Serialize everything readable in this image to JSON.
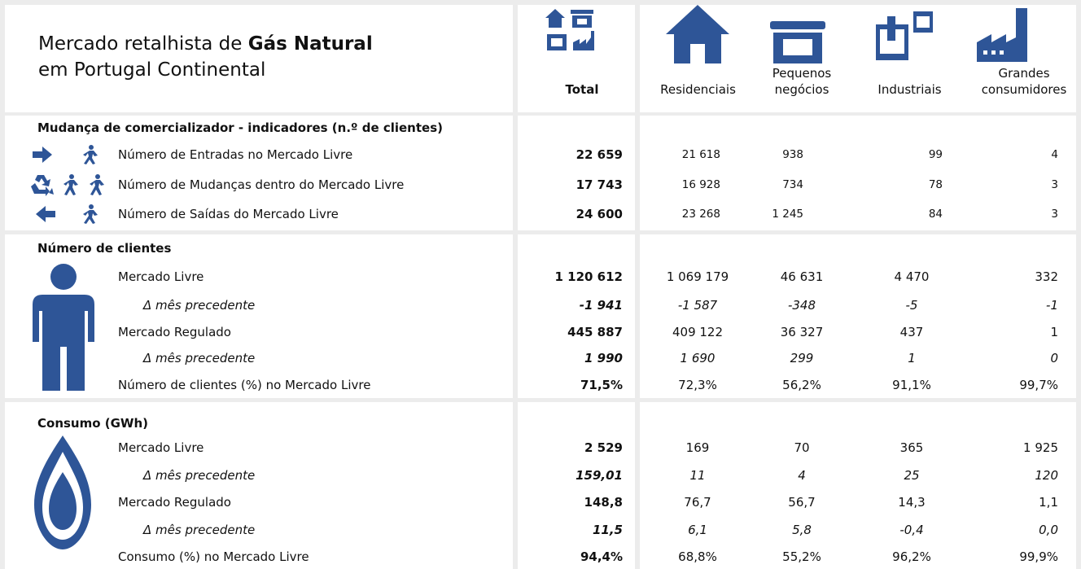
{
  "header": {
    "title_prefix": "Mercado retalhista de ",
    "title_bold": "Gás Natural",
    "title_line2": "em Portugal Continental",
    "columns": [
      "Total",
      "Residenciais",
      "Pequenos negócios",
      "Industriais",
      "Grandes consumidores"
    ]
  },
  "sections": [
    {
      "title": "Mudança de comercializador - indicadores (n.º de clientes)",
      "rows": [
        {
          "label": "Número de Entradas no Mercado Livre",
          "values": [
            "22 659",
            "21 618",
            "938",
            "99",
            "4"
          ]
        },
        {
          "label": "Número de Mudanças dentro do Mercado Livre",
          "values": [
            "17 743",
            "16 928",
            "734",
            "78",
            "3"
          ]
        },
        {
          "label": "Número de Saídas do Mercado Livre",
          "values": [
            "24 600",
            "23 268",
            "1 245",
            "84",
            "3"
          ]
        }
      ]
    },
    {
      "title": "Número de clientes",
      "rows": [
        {
          "label": "Mercado Livre",
          "values": [
            "1 120 612",
            "1 069 179",
            "46 631",
            "4 470",
            "332"
          ]
        },
        {
          "label": "Δ mês precedente",
          "values": [
            "-1 941",
            "-1 587",
            "-348",
            "-5",
            "-1"
          ]
        },
        {
          "label": "Mercado Regulado",
          "values": [
            "445 887",
            "409 122",
            "36 327",
            "437",
            "1"
          ]
        },
        {
          "label": "Δ mês precedente",
          "values": [
            "1 990",
            "1 690",
            "299",
            "1",
            "0"
          ]
        },
        {
          "label": "Número de clientes (%) no Mercado Livre",
          "values": [
            "71,5%",
            "72,3%",
            "56,2%",
            "91,1%",
            "99,7%"
          ]
        }
      ]
    },
    {
      "title": "Consumo (GWh)",
      "rows": [
        {
          "label": "Mercado Livre",
          "values": [
            "2 529",
            "169",
            "70",
            "365",
            "1 925"
          ]
        },
        {
          "label": "Δ mês precedente",
          "values": [
            "159,01",
            "11",
            "4",
            "25",
            "120"
          ]
        },
        {
          "label": "Mercado Regulado",
          "values": [
            "148,8",
            "76,7",
            "56,7",
            "14,3",
            "1,1"
          ]
        },
        {
          "label": "Δ mês precedente",
          "values": [
            "11,5",
            "6,1",
            "5,8",
            "-0,4",
            "0,0"
          ]
        },
        {
          "label": "Consumo (%) no Mercado Livre",
          "values": [
            "94,4%",
            "68,8%",
            "55,2%",
            "96,2%",
            "99,9%"
          ]
        }
      ]
    }
  ]
}
